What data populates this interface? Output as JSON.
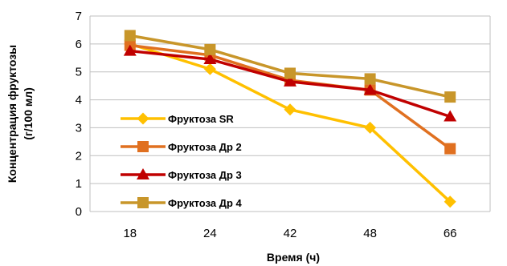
{
  "chart_data": {
    "type": "line",
    "title": "",
    "xlabel": "Время (ч)",
    "ylabel_lines": [
      "Концентрация фруктозы",
      "(г/100 мл)"
    ],
    "categories": [
      "18",
      "24",
      "42",
      "48",
      "66"
    ],
    "ylim": [
      0,
      7
    ],
    "yticks": [
      "0",
      "1",
      "2",
      "3",
      "4",
      "5",
      "6",
      "7"
    ],
    "grid": true,
    "legend_position": "inside-left",
    "series": [
      {
        "name": "Фруктоза SR",
        "values": [
          6.0,
          5.1,
          3.65,
          3.0,
          0.35
        ],
        "color": "#ffc000",
        "marker": "diamond"
      },
      {
        "name": "Фруктоза Др 2",
        "values": [
          5.95,
          5.6,
          4.7,
          4.35,
          2.25
        ],
        "color": "#e07020",
        "marker": "square"
      },
      {
        "name": "Фруктоза Др 3",
        "values": [
          5.75,
          5.45,
          4.65,
          4.35,
          3.4
        ],
        "color": "#c00000",
        "marker": "triangle"
      },
      {
        "name": "Фруктоза Др 4",
        "values": [
          6.3,
          5.8,
          4.95,
          4.75,
          4.1
        ],
        "color": "#c8962a",
        "marker": "square"
      }
    ]
  }
}
